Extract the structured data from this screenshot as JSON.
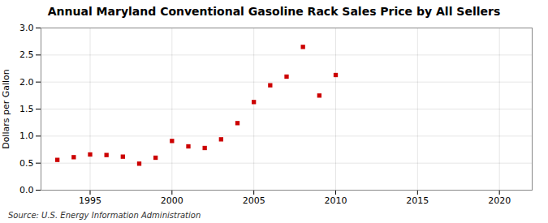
{
  "chart_data": {
    "type": "scatter",
    "title": "Annual Maryland Conventional Gasoline Rack Sales Price by All Sellers",
    "ylabel": "Dollars per Gallon",
    "source": "Source: U.S. Energy Information Administration",
    "x": [
      1993,
      1994,
      1995,
      1996,
      1997,
      1998,
      1999,
      2000,
      2001,
      2002,
      2003,
      2004,
      2005,
      2006,
      2007,
      2008,
      2009,
      2010
    ],
    "values": [
      0.56,
      0.61,
      0.66,
      0.65,
      0.62,
      0.49,
      0.6,
      0.91,
      0.81,
      0.78,
      0.94,
      1.24,
      1.63,
      1.94,
      2.1,
      2.65,
      1.75,
      2.13
    ],
    "color": "#cc0000",
    "marker": "square",
    "xlim": [
      1992,
      2022
    ],
    "ylim": [
      0.0,
      3.0
    ],
    "xticks": [
      1995,
      2000,
      2005,
      2010,
      2015,
      2020
    ],
    "yticks": [
      {
        "value": 0.0,
        "label": "0.0"
      },
      0.5,
      {
        "value": 1.0,
        "label": "1.0"
      },
      1.5,
      {
        "value": 2.0,
        "label": "2.0"
      },
      2.5,
      {
        "value": 3.0,
        "label": "3.0"
      }
    ],
    "grid": true
  }
}
